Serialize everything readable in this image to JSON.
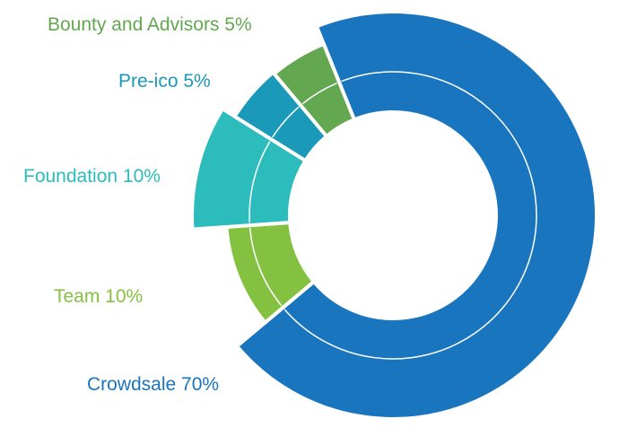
{
  "chart_data": {
    "type": "pie",
    "variant": "donut",
    "title": "",
    "unit": "%",
    "slices": [
      {
        "label": "Crowdsale 70%",
        "name": "Crowdsale",
        "value": 70,
        "color": "#1a75bf"
      },
      {
        "label": "Team 10%",
        "name": "Team",
        "value": 10,
        "color": "#85c140"
      },
      {
        "label": "Foundation 10%",
        "name": "Foundation",
        "value": 10,
        "color": "#2bbcbb"
      },
      {
        "label": "Pre-ico 5%",
        "name": "Pre-ico",
        "value": 5,
        "color": "#1a9ab8"
      },
      {
        "label": "Bounty and Advisors 5%",
        "name": "Bounty and Advisors",
        "value": 5,
        "color": "#63a850"
      }
    ]
  }
}
